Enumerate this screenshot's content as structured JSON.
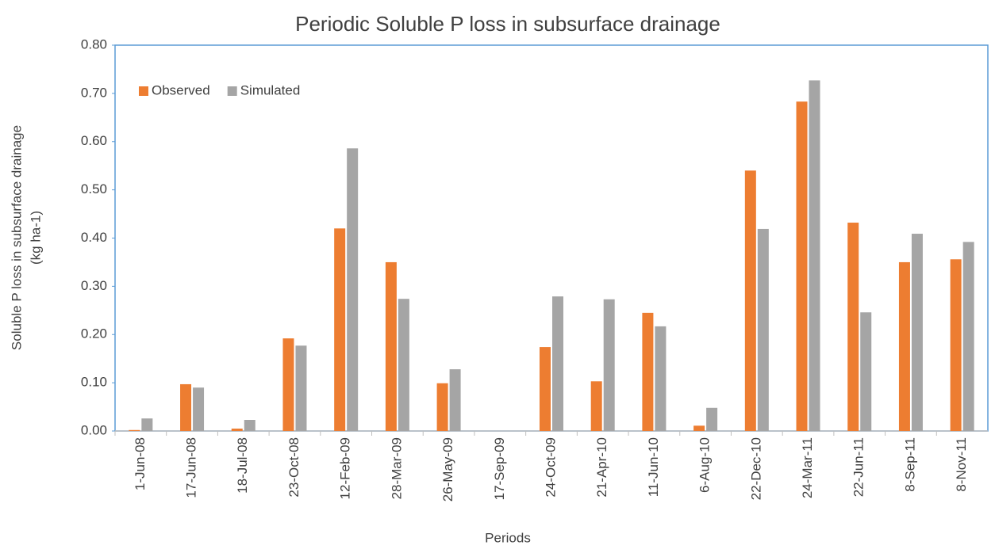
{
  "chart_data": {
    "type": "bar",
    "title": "Periodic Soluble P loss in subsurface drainage",
    "xlabel": "Periods",
    "ylabel": [
      "Soluble P loss in subsurface drainage",
      "(kg ha-1)"
    ],
    "categories": [
      "1-Jun-08",
      "17-Jun-08",
      "18-Jul-08",
      "23-Oct-08",
      "12-Feb-09",
      "28-Mar-09",
      "26-May-09",
      "17-Sep-09",
      "24-Oct-09",
      "21-Apr-10",
      "11-Jun-10",
      "6-Aug-10",
      "22-Dec-10",
      "24-Mar-11",
      "22-Jun-11",
      "8-Sep-11",
      "8-Nov-11"
    ],
    "series": [
      {
        "name": "Observed",
        "color": "#ed7d31",
        "values": [
          0.002,
          0.097,
          0.005,
          0.192,
          0.42,
          0.35,
          0.099,
          0,
          0.174,
          0.103,
          0.245,
          0.011,
          0.54,
          0.683,
          0.432,
          0.35,
          0.356
        ]
      },
      {
        "name": "Simulated",
        "color": "#a5a5a5",
        "values": [
          0.026,
          0.09,
          0.023,
          0.177,
          0.586,
          0.274,
          0.128,
          0,
          0.279,
          0.273,
          0.217,
          0.048,
          0.419,
          0.727,
          0.246,
          0.409,
          0.392
        ]
      }
    ],
    "ylim": [
      0,
      0.8
    ],
    "yticks": [
      {
        "value": 0,
        "label": "0.00"
      },
      {
        "value": 0.1,
        "label": "0.10"
      },
      {
        "value": 0.2,
        "label": "0.20"
      },
      {
        "value": 0.3,
        "label": "0.30"
      },
      {
        "value": 0.4,
        "label": "0.40"
      },
      {
        "value": 0.5,
        "label": "0.50"
      },
      {
        "value": 0.6,
        "label": "0.60"
      },
      {
        "value": 0.7,
        "label": "0.70"
      },
      {
        "value": 0.8,
        "label": "0.80"
      }
    ],
    "legend": "top-left"
  }
}
